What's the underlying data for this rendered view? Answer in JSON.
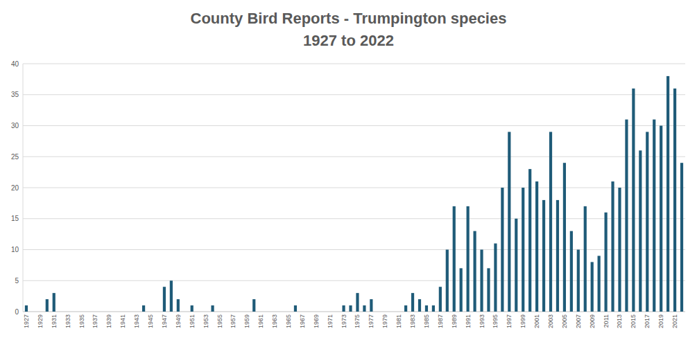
{
  "chart_data": {
    "type": "bar",
    "title": "County Bird Reports - Trumpington species",
    "subtitle": "1927 to 2022",
    "categories": [
      "1927",
      null,
      "1929",
      null,
      "1931",
      null,
      "1933",
      null,
      "1935",
      null,
      "1937",
      null,
      "1939",
      null,
      "1941",
      null,
      "1943",
      null,
      "1945",
      null,
      "1947",
      null,
      "1949",
      null,
      "1951",
      null,
      "1953",
      null,
      "1955",
      null,
      "1957",
      null,
      "1959",
      null,
      "1961",
      null,
      "1963",
      null,
      "1965",
      null,
      "1967",
      null,
      "1969",
      null,
      "1971",
      null,
      "1973",
      null,
      "1975",
      null,
      "1977",
      null,
      "1979",
      null,
      "1981",
      null,
      "1983",
      null,
      "1985",
      null,
      "1987",
      null,
      "1989",
      null,
      "1991",
      null,
      "1993",
      null,
      "1995",
      null,
      "1997",
      null,
      "1999",
      null,
      "2001",
      null,
      "2003",
      null,
      "2005",
      null,
      "2007",
      null,
      "2009",
      null,
      "2011",
      null,
      "2013",
      null,
      "2015",
      null,
      "2017",
      null,
      "2019",
      null,
      "2021",
      null
    ],
    "values": [
      1,
      0,
      0,
      2,
      3,
      0,
      0,
      0,
      0,
      0,
      0,
      0,
      0,
      0,
      0,
      0,
      0,
      1,
      0,
      0,
      4,
      5,
      2,
      0,
      1,
      0,
      0,
      1,
      0,
      0,
      0,
      0,
      0,
      2,
      0,
      0,
      0,
      0,
      0,
      1,
      0,
      0,
      0,
      0,
      0,
      0,
      1,
      1,
      3,
      1,
      2,
      0,
      0,
      0,
      0,
      1,
      3,
      2,
      1,
      1,
      4,
      10,
      17,
      7,
      17,
      13,
      10,
      7,
      11,
      20,
      29,
      15,
      20,
      23,
      21,
      18,
      29,
      18,
      24,
      13,
      10,
      17,
      8,
      9,
      16,
      21,
      20,
      31,
      36,
      26,
      29,
      31,
      30,
      38,
      36,
      24
    ],
    "color": "#1f5b78",
    "ylim": [
      0,
      40
    ],
    "yticks": [
      0,
      5,
      10,
      15,
      20,
      25,
      30,
      35,
      40
    ],
    "grid": true
  }
}
